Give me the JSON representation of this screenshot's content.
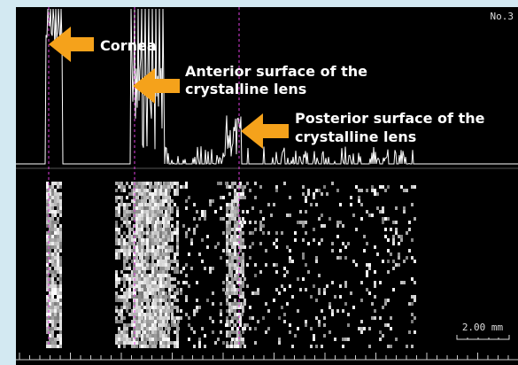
{
  "image_label": "No.3",
  "annotations": [
    {
      "lines": [
        "Cornea"
      ]
    },
    {
      "lines": [
        "Anterior surface of the",
        "crystalline lens"
      ]
    },
    {
      "lines": [
        "Posterior surface of the",
        "crystalline lens"
      ]
    }
  ],
  "scale_bar": "2.00 mm"
}
